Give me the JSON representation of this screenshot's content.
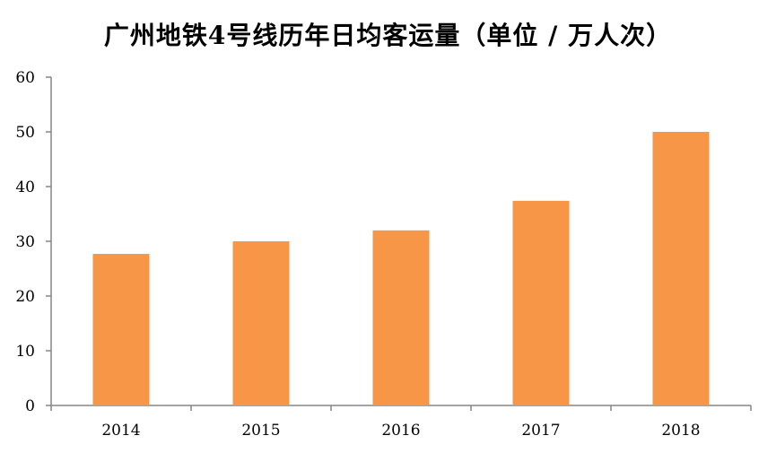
{
  "chart_data": {
    "type": "bar",
    "title": "广州地铁4号线历年日均客运量（单位 / 万人次）",
    "categories": [
      "2014",
      "2015",
      "2016",
      "2017",
      "2018"
    ],
    "values": [
      27.7,
      30.0,
      32.0,
      37.4,
      50.0
    ],
    "ylim": [
      0,
      60
    ],
    "yticks": [
      0,
      10,
      20,
      30,
      40,
      50,
      60
    ],
    "xlabel": "",
    "ylabel": "",
    "grid": false,
    "legend": "none",
    "bar_color": "#f79646",
    "axis_color": "#868686"
  }
}
